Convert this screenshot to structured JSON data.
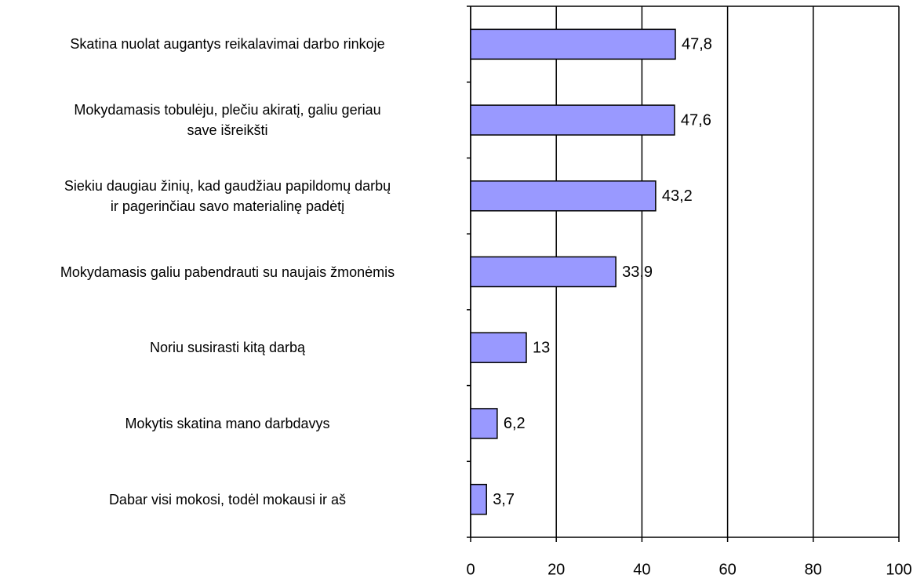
{
  "chart_data": {
    "type": "barh",
    "categories": [
      "Skatina nuolat augantys reikalavimai darbo rinkoje",
      "Mokydamasis tobulėju, plečiu akiratį, galiu geriau\nsave išreikšti",
      "Siekiu daugiau žinių, kad gaudžiau papildomų darbų\nir pagerinčiau savo materialinę padėtį",
      "Mokydamasis galiu pabendrauti su naujais žmonėmis",
      "Noriu susirasti kitą darbą",
      "Mokytis skatina mano darbdavys",
      "Dabar visi mokosi, todėl mokausi ir aš"
    ],
    "values": [
      47.8,
      47.6,
      43.2,
      33.9,
      13,
      6.2,
      3.7
    ],
    "value_labels": [
      "47,8",
      "47,6",
      "43,2",
      "33,9",
      "13",
      "6,2",
      "3,7"
    ],
    "color": "#9999ff",
    "xlim": [
      0,
      100
    ],
    "xticks": [
      0,
      20,
      40,
      60,
      80,
      100
    ],
    "grid": true
  }
}
